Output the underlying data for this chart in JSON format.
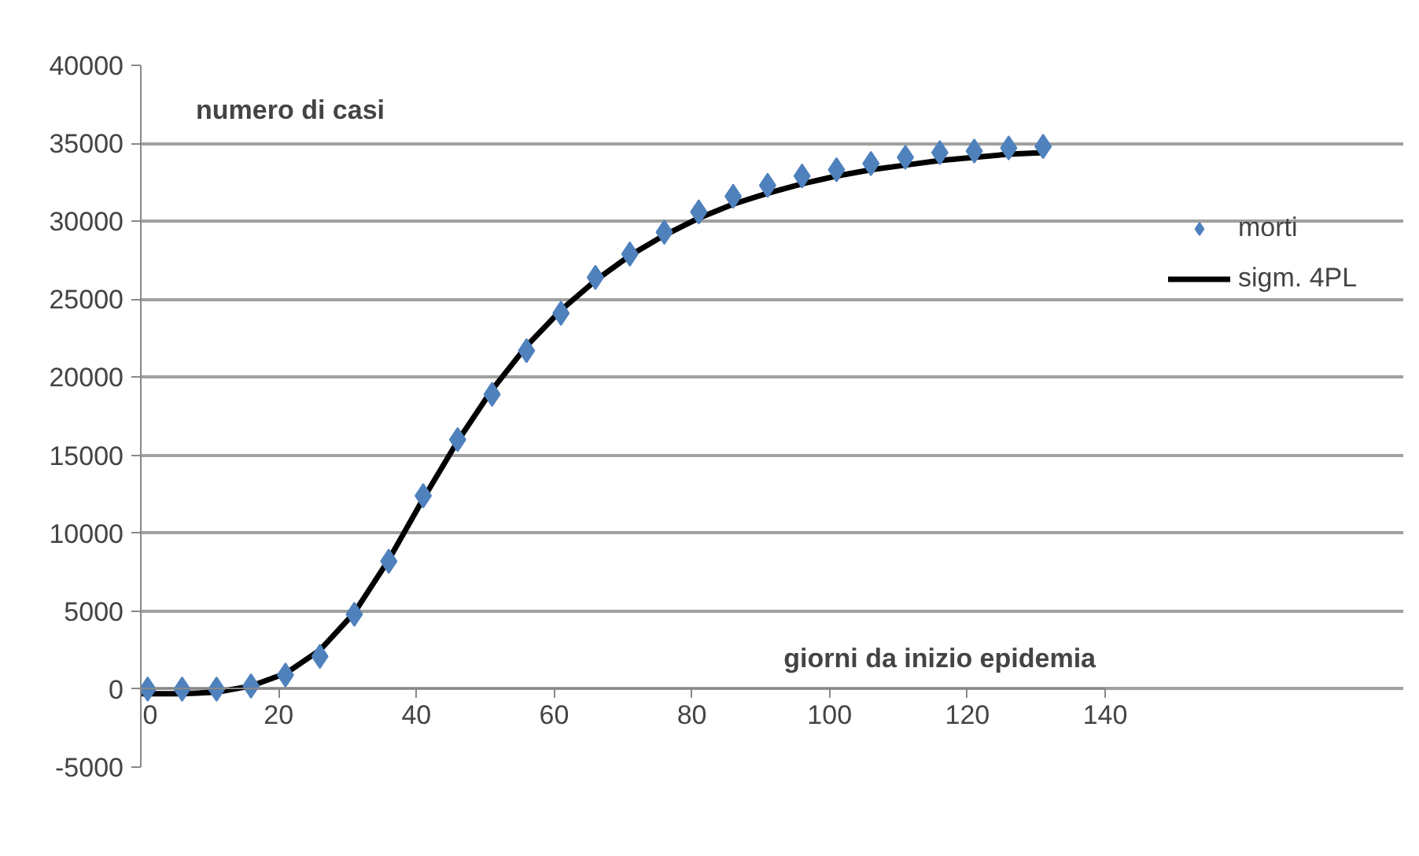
{
  "chart_data": {
    "type": "scatter",
    "xlabel": "giorni da inizio epidemia",
    "ylabel": "numero di casi",
    "xlim": [
      0,
      140
    ],
    "ylim": [
      -5000,
      40000
    ],
    "xticks": [
      0,
      20,
      40,
      60,
      80,
      100,
      120,
      140
    ],
    "yticks": [
      -5000,
      0,
      5000,
      10000,
      15000,
      20000,
      25000,
      30000,
      35000,
      40000
    ],
    "grid": "y",
    "legend": "right",
    "marker": "diamond",
    "series": [
      {
        "name": "morti",
        "color": "#4f81bd",
        "x": [
          1,
          6,
          11,
          16,
          21,
          26,
          31,
          36,
          41,
          46,
          51,
          56,
          61,
          66,
          71,
          76,
          81,
          86,
          91,
          96,
          101,
          106,
          111,
          116,
          121,
          126,
          131
        ],
        "values": [
          0,
          0,
          0,
          200,
          900,
          2100,
          4800,
          8200,
          12400,
          16000,
          18900,
          21700,
          24100,
          26400,
          27900,
          29300,
          30600,
          31600,
          32300,
          32900,
          33300,
          33700,
          34100,
          34400,
          34500,
          34700,
          34800
        ]
      },
      {
        "name": "sigm. 4PL",
        "color": "#000000",
        "type": "line",
        "marker": "none",
        "x": [
          0,
          6,
          11,
          16,
          21,
          26,
          31,
          36,
          41,
          46,
          51,
          56,
          61,
          66,
          71,
          76,
          81,
          86,
          91,
          96,
          101,
          106,
          111,
          116,
          121,
          126,
          131
        ],
        "values": [
          -300,
          -300,
          -200,
          200,
          1000,
          2500,
          4900,
          8300,
          12200,
          15900,
          19200,
          22000,
          24300,
          26200,
          27800,
          29100,
          30200,
          31100,
          31800,
          32400,
          32900,
          33300,
          33600,
          33900,
          34100,
          34300,
          34400
        ]
      }
    ]
  }
}
